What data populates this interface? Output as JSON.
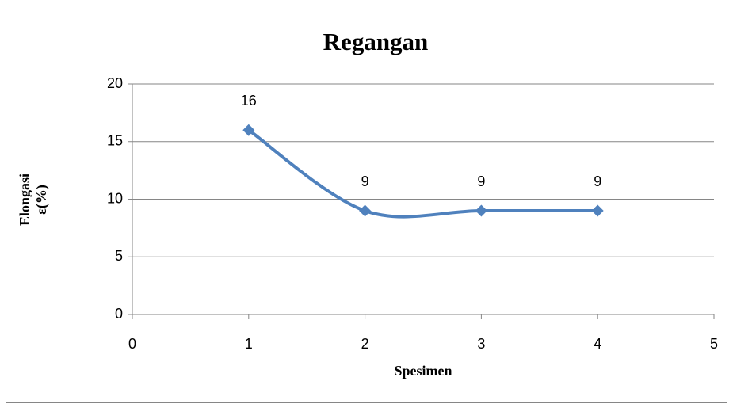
{
  "chart_data": {
    "type": "line",
    "title": "Regangan",
    "xlabel": "Spesimen",
    "ylabel": [
      "Elongasi",
      "ε(%)"
    ],
    "x": [
      1,
      2,
      3,
      4
    ],
    "series": [
      {
        "name": "Regangan",
        "color": "#4f81bd",
        "values": [
          16,
          9,
          9,
          9
        ]
      }
    ],
    "xlim": [
      0,
      5
    ],
    "xticks": [
      0,
      1,
      2,
      3,
      4,
      5
    ],
    "ylim": [
      0,
      20
    ],
    "yticks": [
      0,
      5,
      10,
      15,
      20
    ],
    "grid": true,
    "smooth": true
  }
}
